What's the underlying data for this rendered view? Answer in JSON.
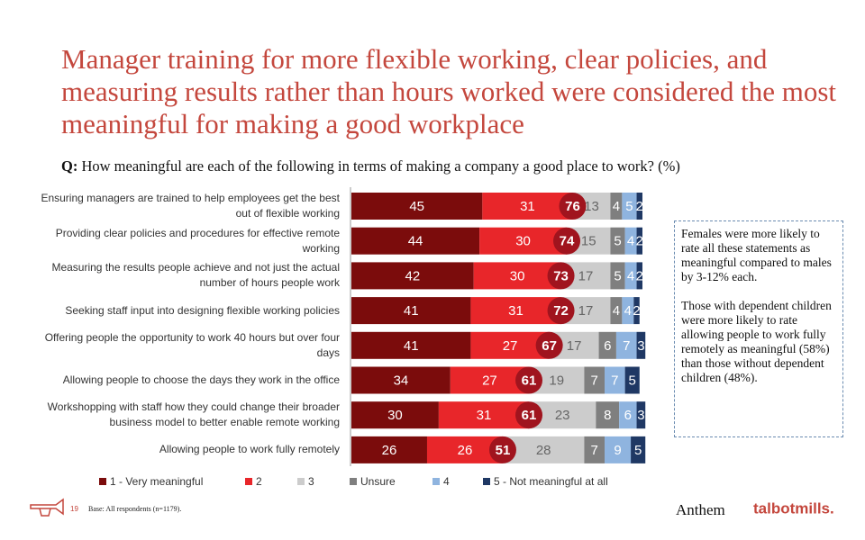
{
  "chart_data": {
    "type": "stacked_bar",
    "title": "Manager training for more flexible working, clear policies, and measuring results rather than hours worked were considered the most meaningful for making a good workplace",
    "question_prefix": "Q:",
    "question": "How meaningful are each of the following in terms of making a company a good place to work? (%)",
    "categories": [
      "Ensuring managers are trained to help employees get the best out of flexible working",
      "Providing clear policies and procedures for effective remote working",
      "Measuring the results people achieve and not just the actual number of hours people work",
      "Seeking staff input into designing flexible working policies",
      "Offering people the opportunity to work 40 hours but over four days",
      "Allowing people to choose the days they work in the office",
      "Workshopping with staff how they could change their broader business model to better enable remote working",
      "Allowing people to work fully remotely"
    ],
    "xlim": [
      0,
      100
    ],
    "series": [
      {
        "name": "1 - Very meaningful",
        "color": "#7b0c0c",
        "values": [
          45,
          44,
          42,
          41,
          41,
          34,
          30,
          26
        ]
      },
      {
        "name": "2",
        "color": "#e8262a",
        "values": [
          31,
          30,
          30,
          31,
          27,
          27,
          31,
          26
        ]
      },
      {
        "name": "3",
        "color": "#cccccc",
        "values": [
          13,
          15,
          17,
          17,
          17,
          19,
          23,
          28
        ]
      },
      {
        "name": "Unsure",
        "color": "#7f7f7f",
        "values": [
          4,
          5,
          5,
          4,
          6,
          7,
          8,
          7
        ]
      },
      {
        "name": "4",
        "color": "#8fb4df",
        "values": [
          5,
          4,
          4,
          4,
          7,
          7,
          6,
          9
        ]
      },
      {
        "name": "5 - Not meaningful at all",
        "color": "#1f3864",
        "values": [
          2,
          2,
          2,
          2,
          3,
          5,
          3,
          5
        ]
      }
    ],
    "net_labels": [
      76,
      74,
      73,
      72,
      67,
      61,
      61,
      51
    ],
    "net_color": "#a0141e",
    "callout": [
      "Females were more likely to rate all these statements as meaningful compared to males by 3-12% each.",
      "Those with dependent children were more likely to rate allowing people to work fully remotely as meaningful (58%) than those without dependent children (48%)."
    ],
    "page_number": "19",
    "base_note": "Base: All respondents (n=1179).",
    "logos": [
      "Anthem",
      "talbotmills."
    ]
  }
}
